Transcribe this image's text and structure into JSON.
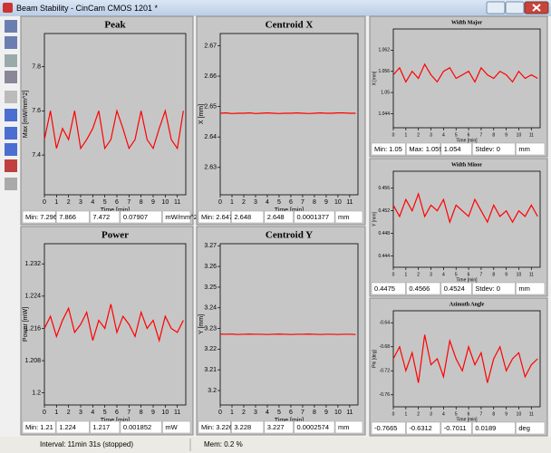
{
  "window": {
    "title": "Beam Stability - CinCam CMOS 1201 *"
  },
  "chart_data": [
    {
      "type": "line",
      "title": "Peak",
      "ylabel": "Max [mW/mm^2]",
      "xlabel": "Time [min]",
      "color": "#ff0000",
      "xlim": [
        0,
        11.7
      ],
      "xticks": [
        0,
        1,
        2,
        3,
        4,
        5,
        6,
        7,
        8,
        9,
        10,
        11
      ],
      "ylim": [
        7.22,
        7.95
      ],
      "yticks": [
        7.4,
        7.6,
        7.8
      ],
      "x": [
        0,
        0.5,
        1,
        1.5,
        2,
        2.5,
        3,
        3.5,
        4,
        4.5,
        5,
        5.5,
        6,
        6.5,
        7,
        7.5,
        8,
        8.5,
        9,
        9.5,
        10,
        10.5,
        11,
        11.5
      ],
      "values": [
        7.47,
        7.6,
        7.43,
        7.52,
        7.47,
        7.6,
        7.43,
        7.47,
        7.52,
        7.6,
        7.43,
        7.47,
        7.6,
        7.52,
        7.43,
        7.47,
        7.6,
        7.47,
        7.43,
        7.52,
        7.6,
        7.47,
        7.43,
        7.6
      ],
      "stats": [
        "Min: 7.296",
        "7.866",
        "7.472",
        "0.07907",
        "mW/mm^2"
      ]
    },
    {
      "type": "line",
      "title": "Centroid X",
      "ylabel": "X [mm]",
      "xlabel": "Time [min]",
      "color": "#ff0000",
      "xlim": [
        0,
        11.7
      ],
      "xticks": [
        0,
        1,
        2,
        3,
        4,
        5,
        6,
        7,
        8,
        9,
        10,
        11
      ],
      "ylim": [
        2.621,
        2.674
      ],
      "yticks": [
        2.63,
        2.64,
        2.65,
        2.66,
        2.67
      ],
      "x": [
        0,
        0.5,
        1,
        1.5,
        2,
        2.5,
        3,
        3.5,
        4,
        4.5,
        5,
        5.5,
        6,
        6.5,
        7,
        7.5,
        8,
        8.5,
        9,
        9.5,
        10,
        10.5,
        11,
        11.5
      ],
      "values": [
        2.6478,
        2.6479,
        2.6477,
        2.6478,
        2.6478,
        2.6479,
        2.6477,
        2.6478,
        2.6479,
        2.6478,
        2.6477,
        2.6478,
        2.6478,
        2.6479,
        2.6478,
        2.6477,
        2.6478,
        2.6479,
        2.6478,
        2.6478,
        2.6479,
        2.6479,
        2.6478,
        2.6478
      ],
      "stats": [
        "Min: 2.647",
        "2.648",
        "2.648",
        "0.0001377",
        "mm"
      ]
    },
    {
      "type": "line",
      "title": "Power",
      "ylabel": "Power [mW]",
      "xlabel": "Time [min]",
      "color": "#ff0000",
      "xlim": [
        0,
        11.7
      ],
      "xticks": [
        0,
        1,
        2,
        3,
        4,
        5,
        6,
        7,
        8,
        9,
        10,
        11
      ],
      "ylim": [
        1.197,
        1.237
      ],
      "yticks": [
        1.2,
        1.208,
        1.216,
        1.224,
        1.232
      ],
      "x": [
        0,
        0.5,
        1,
        1.5,
        2,
        2.5,
        3,
        3.5,
        4,
        4.5,
        5,
        5.5,
        6,
        6.5,
        7,
        7.5,
        8,
        8.5,
        9,
        9.5,
        10,
        10.5,
        11,
        11.5
      ],
      "values": [
        1.216,
        1.219,
        1.214,
        1.218,
        1.221,
        1.215,
        1.217,
        1.22,
        1.213,
        1.218,
        1.216,
        1.222,
        1.215,
        1.219,
        1.217,
        1.214,
        1.22,
        1.216,
        1.218,
        1.213,
        1.219,
        1.216,
        1.215,
        1.218
      ],
      "stats": [
        "Min: 1.21",
        "1.224",
        "1.217",
        "0.001852",
        "mW"
      ]
    },
    {
      "type": "line",
      "title": "Centroid Y",
      "ylabel": "Y [mm]",
      "xlabel": "Time [min]",
      "color": "#ff0000",
      "xlim": [
        0,
        11.7
      ],
      "xticks": [
        0,
        1,
        2,
        3,
        4,
        5,
        6,
        7,
        8,
        9,
        10,
        11
      ],
      "ylim": [
        3.193,
        3.271
      ],
      "yticks": [
        3.2,
        3.21,
        3.22,
        3.23,
        3.24,
        3.25,
        3.26,
        3.27
      ],
      "x": [
        0,
        0.5,
        1,
        1.5,
        2,
        2.5,
        3,
        3.5,
        4,
        4.5,
        5,
        5.5,
        6,
        6.5,
        7,
        7.5,
        8,
        8.5,
        9,
        9.5,
        10,
        10.5,
        11,
        11.5
      ],
      "values": [
        3.2273,
        3.2272,
        3.2273,
        3.2271,
        3.2272,
        3.2273,
        3.2272,
        3.2272,
        3.2271,
        3.2272,
        3.2273,
        3.2272,
        3.2271,
        3.2272,
        3.2272,
        3.2273,
        3.2272,
        3.2271,
        3.2272,
        3.2272,
        3.2271,
        3.2272,
        3.2272,
        3.2271
      ],
      "stats": [
        "Min: 3.226",
        "3.228",
        "3.227",
        "0.0002574",
        "mm"
      ]
    },
    {
      "type": "line",
      "title": "Width Major",
      "ylabel": "X [mm]",
      "xlabel": "Time [min]",
      "color": "#ff0000",
      "xlim": [
        0,
        11.7
      ],
      "xticks": [
        0,
        1,
        2,
        3,
        4,
        5,
        6,
        7,
        8,
        9,
        10,
        11
      ],
      "ylim": [
        1.04,
        1.068
      ],
      "yticks": [
        1.044,
        1.05,
        1.056,
        1.062
      ],
      "x": [
        0,
        0.5,
        1,
        1.5,
        2,
        2.5,
        3,
        3.5,
        4,
        4.5,
        5,
        5.5,
        6,
        6.5,
        7,
        7.5,
        8,
        8.5,
        9,
        9.5,
        10,
        10.5,
        11,
        11.5
      ],
      "values": [
        1.055,
        1.057,
        1.053,
        1.056,
        1.054,
        1.058,
        1.055,
        1.053,
        1.056,
        1.057,
        1.054,
        1.055,
        1.056,
        1.053,
        1.057,
        1.055,
        1.054,
        1.056,
        1.055,
        1.053,
        1.056,
        1.054,
        1.055,
        1.054
      ],
      "stats": [
        "Min: 1.05",
        "Max: 1.059",
        "1.054",
        "Stdev: 0",
        "mm"
      ]
    },
    {
      "type": "line",
      "title": "Width Minor",
      "ylabel": "Y [mm]",
      "xlabel": "Time [min]",
      "color": "#ff0000",
      "xlim": [
        0,
        11.7
      ],
      "xticks": [
        0,
        1,
        2,
        3,
        4,
        5,
        6,
        7,
        8,
        9,
        10,
        11
      ],
      "ylim": [
        0.442,
        0.459
      ],
      "yticks": [
        0.444,
        0.448,
        0.452,
        0.456
      ],
      "x": [
        0,
        0.5,
        1,
        1.5,
        2,
        2.5,
        3,
        3.5,
        4,
        4.5,
        5,
        5.5,
        6,
        6.5,
        7,
        7.5,
        8,
        8.5,
        9,
        9.5,
        10,
        10.5,
        11,
        11.5
      ],
      "values": [
        0.453,
        0.451,
        0.454,
        0.452,
        0.455,
        0.451,
        0.453,
        0.452,
        0.454,
        0.45,
        0.453,
        0.452,
        0.451,
        0.454,
        0.452,
        0.45,
        0.453,
        0.451,
        0.452,
        0.45,
        0.452,
        0.451,
        0.453,
        0.451
      ],
      "stats": [
        "0.4475",
        "0.4566",
        "0.4524",
        "Stdev: 0",
        "mm"
      ]
    },
    {
      "type": "line",
      "title": "Azimuth Angle",
      "ylabel": "Phi [deg]",
      "xlabel": "Time [min]",
      "color": "#ff0000",
      "xlim": [
        0,
        11.7
      ],
      "xticks": [
        0,
        1,
        2,
        3,
        4,
        5,
        6,
        7,
        8,
        9,
        10,
        11
      ],
      "ylim": [
        -0.78,
        -0.62
      ],
      "yticks": [
        -0.76,
        -0.72,
        -0.68,
        -0.64
      ],
      "x": [
        0,
        0.5,
        1,
        1.5,
        2,
        2.5,
        3,
        3.5,
        4,
        4.5,
        5,
        5.5,
        6,
        6.5,
        7,
        7.5,
        8,
        8.5,
        9,
        9.5,
        10,
        10.5,
        11,
        11.5
      ],
      "values": [
        -0.7,
        -0.68,
        -0.72,
        -0.69,
        -0.74,
        -0.66,
        -0.71,
        -0.7,
        -0.73,
        -0.67,
        -0.7,
        -0.72,
        -0.68,
        -0.71,
        -0.69,
        -0.74,
        -0.7,
        -0.68,
        -0.72,
        -0.7,
        -0.69,
        -0.73,
        -0.71,
        -0.7
      ],
      "stats": [
        "-0.7665",
        "-0.6312",
        "-0.7011",
        "0.0189",
        "deg"
      ]
    }
  ],
  "status_bar": {
    "interval": "Interval:  11min 31s (stopped)",
    "mem": "Mem:  0.2 %"
  }
}
